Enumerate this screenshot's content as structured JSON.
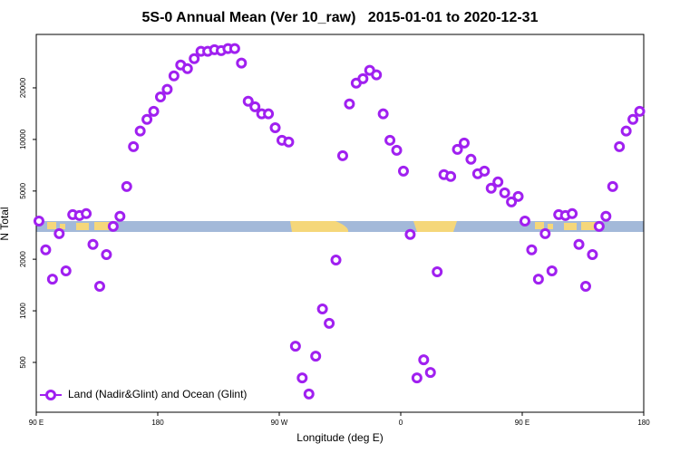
{
  "chart_data": {
    "type": "scatter",
    "title": "5S-0 Annual Mean (Ver 10_raw)   2015-01-01 to 2020-12-31",
    "x_label": "Longitude (deg E)",
    "y_label": "N Total",
    "log_y": true,
    "legend_position": "bottom-left",
    "xlim": [
      90,
      540
    ],
    "xticks": [
      {
        "value": 90,
        "label": "90 E"
      },
      {
        "value": 180,
        "label": "180"
      },
      {
        "value": 270,
        "label": "90 W"
      },
      {
        "value": 360,
        "label": "0"
      },
      {
        "value": 450,
        "label": "90 E"
      },
      {
        "value": 540,
        "label": "180"
      }
    ],
    "ylim": [
      256,
      41000
    ],
    "yticks": [
      500,
      1000,
      2000,
      5000,
      10000,
      20000
    ],
    "x": [
      92,
      97,
      102,
      107,
      112,
      117,
      122,
      127,
      132,
      137,
      142,
      147,
      152,
      157,
      162,
      167,
      172,
      177,
      182,
      187,
      192,
      197,
      202,
      207,
      212,
      217,
      222,
      227,
      232,
      237,
      242,
      247,
      252,
      257,
      262,
      267,
      272,
      277,
      282,
      287,
      292,
      297,
      302,
      307,
      312,
      317,
      322,
      327,
      332,
      337,
      342,
      347,
      352,
      357,
      362,
      367,
      372,
      377,
      382,
      387,
      392,
      397,
      402,
      407,
      412,
      417,
      422,
      427,
      432,
      437,
      442,
      447,
      452,
      457,
      462,
      467,
      472,
      477,
      482,
      487,
      492,
      497,
      502,
      507,
      512,
      517,
      522,
      527,
      532,
      537
    ],
    "series": [
      {
        "name": "Land (Nadir&Glint) and Ocean (Glint)",
        "color": "#a020f0",
        "values": [
          3340,
          2270,
          1530,
          2820,
          1710,
          3640,
          3600,
          3690,
          2440,
          1390,
          2130,
          3110,
          3560,
          5310,
          9080,
          11200,
          13100,
          14600,
          17700,
          19600,
          23500,
          27200,
          25900,
          29600,
          32700,
          32700,
          33400,
          33000,
          33900,
          33900,
          27900,
          16700,
          15500,
          14100,
          14100,
          11700,
          9890,
          9660,
          622,
          406,
          327,
          544,
          1026,
          845,
          1980,
          8040,
          16100,
          21300,
          22600,
          25300,
          23800,
          14100,
          9890,
          8650,
          6530,
          2790,
          406,
          518,
          437,
          1690,
          6230,
          6080,
          8750,
          9530,
          7660,
          6310,
          6530,
          5190,
          5650,
          4880,
          4320,
          4650,
          3340,
          2270,
          1530,
          2820,
          1710,
          3640,
          3600,
          3690,
          2440,
          1390,
          2130,
          3110,
          3560,
          5310,
          9080,
          11200,
          13100,
          14600
        ]
      }
    ]
  }
}
